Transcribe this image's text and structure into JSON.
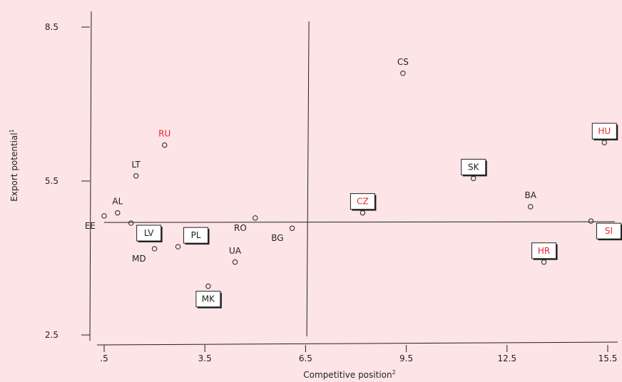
{
  "chart_data": {
    "type": "scatter",
    "title": "",
    "xlabel": "Competitive position",
    "xlabel_sup": "2",
    "ylabel": "Export potential",
    "ylabel_sup": "1",
    "xlim": [
      0.5,
      16.0
    ],
    "ylim": [
      2.4,
      8.85
    ],
    "x_ticks": [
      {
        "value": 0.5,
        "label": ".5"
      },
      {
        "value": 3.5,
        "label": "3.5"
      },
      {
        "value": 6.5,
        "label": "6.5"
      },
      {
        "value": 9.5,
        "label": "9.5"
      },
      {
        "value": 12.5,
        "label": "12.5"
      },
      {
        "value": 15.5,
        "label": "15.5"
      }
    ],
    "y_ticks": [
      {
        "value": 2.5,
        "label": "2.5"
      },
      {
        "value": 5.5,
        "label": "5.5"
      },
      {
        "value": 8.5,
        "label": "8.5"
      }
    ],
    "reference_lines": {
      "vertical_x": 6.6,
      "horizontal_y": 4.7
    },
    "grid": false,
    "colors": {
      "normal_label": "#222222",
      "highlight_label": "#e8262a",
      "marker_stroke": "#222222",
      "background": "#fde4e7"
    },
    "points": [
      {
        "label": "CS",
        "x": 9.4,
        "y": 7.6,
        "boxed": false,
        "highlight": false,
        "label_pos": "above"
      },
      {
        "label": "HU",
        "x": 15.4,
        "y": 6.25,
        "boxed": true,
        "highlight": true,
        "label_pos": "above"
      },
      {
        "label": "SK",
        "x": 11.5,
        "y": 5.55,
        "boxed": true,
        "highlight": false,
        "label_pos": "above"
      },
      {
        "label": "RU",
        "x": 2.3,
        "y": 6.2,
        "boxed": false,
        "highlight": true,
        "label_pos": "above"
      },
      {
        "label": "LT",
        "x": 1.45,
        "y": 5.6,
        "boxed": false,
        "highlight": false,
        "label_pos": "above"
      },
      {
        "label": "AL",
        "x": 0.9,
        "y": 4.88,
        "boxed": false,
        "highlight": false,
        "label_pos": "above"
      },
      {
        "label": "EE",
        "x": 0.5,
        "y": 4.82,
        "boxed": false,
        "highlight": false,
        "label_pos": "belowleft"
      },
      {
        "label": "LV",
        "x": 1.3,
        "y": 4.68,
        "boxed": true,
        "highlight": false,
        "label_pos": "belowright"
      },
      {
        "label": "MD",
        "x": 2.0,
        "y": 4.18,
        "boxed": false,
        "highlight": false,
        "label_pos": "belowleft"
      },
      {
        "label": "PL",
        "x": 2.7,
        "y": 4.22,
        "boxed": true,
        "highlight": false,
        "label_pos": "aboveright"
      },
      {
        "label": "RO",
        "x": 5.0,
        "y": 4.78,
        "boxed": false,
        "highlight": false,
        "label_pos": "belowleft"
      },
      {
        "label": "BG",
        "x": 6.1,
        "y": 4.58,
        "boxed": false,
        "highlight": false,
        "label_pos": "belowleft"
      },
      {
        "label": "UA",
        "x": 4.4,
        "y": 3.92,
        "boxed": false,
        "highlight": false,
        "label_pos": "above"
      },
      {
        "label": "MK",
        "x": 3.6,
        "y": 3.45,
        "boxed": true,
        "highlight": false,
        "label_pos": "below"
      },
      {
        "label": "CZ",
        "x": 8.2,
        "y": 4.88,
        "boxed": true,
        "highlight": true,
        "label_pos": "above"
      },
      {
        "label": "BA",
        "x": 13.2,
        "y": 5.0,
        "boxed": false,
        "highlight": false,
        "label_pos": "above"
      },
      {
        "label": "SI",
        "x": 15.0,
        "y": 4.72,
        "boxed": true,
        "highlight": true,
        "label_pos": "belowright"
      },
      {
        "label": "HR",
        "x": 13.6,
        "y": 3.92,
        "boxed": true,
        "highlight": true,
        "label_pos": "above"
      }
    ]
  }
}
